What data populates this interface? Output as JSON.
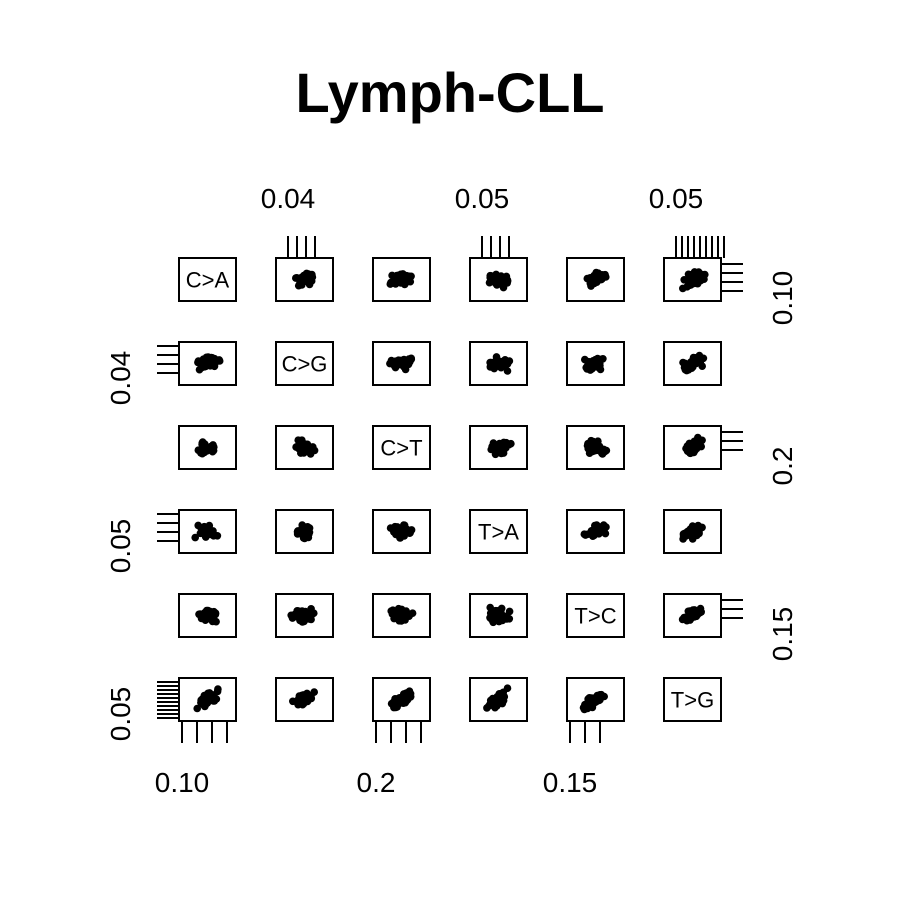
{
  "chart_data": {
    "type": "scatter",
    "title": "Lymph-CLL",
    "variables": [
      "C>A",
      "C>G",
      "C>T",
      "T>A",
      "T>C",
      "T>G"
    ],
    "axis_tick_labels": {
      "top": [
        "0.04",
        "0.05",
        "0.05"
      ],
      "bottom": [
        "0.10",
        "0.2",
        "0.15"
      ],
      "left": [
        "0.04",
        "0.05",
        "0.05"
      ],
      "right": [
        "0.10",
        "0.2",
        "0.15"
      ]
    },
    "point_color": "#000000",
    "n_points_per_panel": 40
  }
}
